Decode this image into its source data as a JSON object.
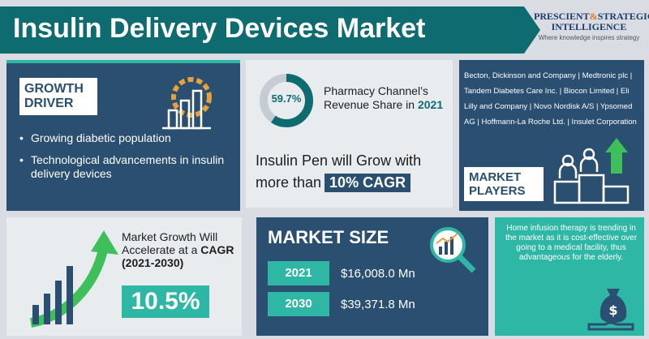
{
  "header": {
    "title": "Insulin Delivery Devices Market",
    "logo_line1_a": "PRESCIENT",
    "logo_amp": "&",
    "logo_line1_b": "STRATEGIC",
    "logo_line2": "INTELLIGENCE",
    "logo_tagline": "Where knowledge inspires strategy"
  },
  "growth": {
    "label": "GROWTH DRIVER",
    "bullets": [
      "Growing diabetic population",
      "Technological advancements in insulin delivery devices"
    ],
    "icon": "gear-bar-chart-icon"
  },
  "pharmacy": {
    "value": "59.7%",
    "share_fraction": 0.597,
    "text": "Pharmacy Channel’s Revenue Share in",
    "year": "2021",
    "pen_text_a": "Insulin Pen will Grow with",
    "pen_text_b": "more than",
    "pen_highlight": "10% CAGR"
  },
  "players": {
    "list": "Becton, Dickinson and Company | Medtronic plc | Tandem Diabetes Care Inc. | Biocon Limited | Eli Lilly and Company | Novo Nordisk A/S | Ypsomed AG | Hoffmann-La Roche Ltd. | Insulet Corporation",
    "label": "MARKET PLAYERS",
    "icon": "podium-people-icon"
  },
  "acceleration": {
    "text": "Market Growth Will Accelerate at a",
    "strong": "CAGR (2021-2030)",
    "value": "10.5%",
    "icon": "rising-bars-arrow-icon"
  },
  "market_size": {
    "label": "MARKET SIZE",
    "icon": "magnifier-chart-icon",
    "rows": [
      {
        "year": "2021",
        "amount": "$16,008.0 Mn"
      },
      {
        "year": "2030",
        "amount": "$39,371.8 Mn"
      }
    ]
  },
  "home_infusion": {
    "text": "Home infusion therapy is trending in the market as it is cost-effective over going to a medical facility, thus advantageous for the elderly.",
    "icon": "money-bag-hand-icon"
  },
  "colors": {
    "teal": "#0e6b6f",
    "navy": "#2a4f71",
    "mint": "#2fb7a6",
    "light": "#e9ecef",
    "green": "#3fbf5a"
  }
}
